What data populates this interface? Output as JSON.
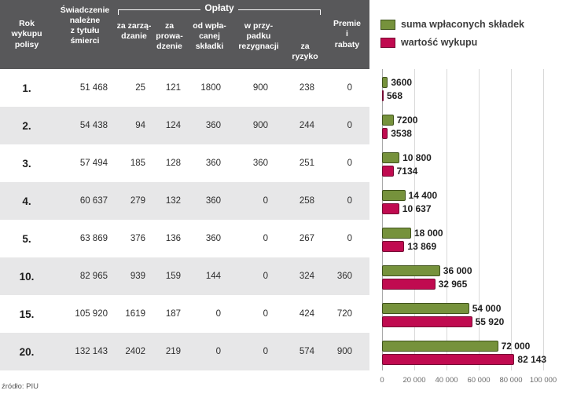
{
  "colors": {
    "header_bg": "#58585a",
    "row_alt_bg": "#e7e7e8"
  },
  "source_note": "źródło: PIU",
  "table": {
    "header": {
      "year": "Rok\nwykupu\npolisy",
      "benefit": "Świadczenie\nnależne\nz tytułu\nśmierci",
      "fees_group": "Opłaty",
      "fee_management": "za zarzą-\ndzanie",
      "fee_administration": "za prowa-\ndzenie",
      "fee_premium": "od wpła-\ncanej\nskładki",
      "fee_surrender": "w przy-\npadku\nrezygnacji",
      "fee_risk": "za\nryzyko",
      "bonuses": "Premie\ni\nrabaty"
    },
    "rows": [
      {
        "year": "1.",
        "benefit": "51 468",
        "management": "25",
        "administration": "121",
        "premium": "1800",
        "surrender": "900",
        "risk": "238",
        "bonuses": "0"
      },
      {
        "year": "2.",
        "benefit": "54 438",
        "management": "94",
        "administration": "124",
        "premium": "360",
        "surrender": "900",
        "risk": "244",
        "bonuses": "0"
      },
      {
        "year": "3.",
        "benefit": "57 494",
        "management": "185",
        "administration": "128",
        "premium": "360",
        "surrender": "360",
        "risk": "251",
        "bonuses": "0"
      },
      {
        "year": "4.",
        "benefit": "60 637",
        "management": "279",
        "administration": "132",
        "premium": "360",
        "surrender": "0",
        "risk": "258",
        "bonuses": "0"
      },
      {
        "year": "5.",
        "benefit": "63 869",
        "management": "376",
        "administration": "136",
        "premium": "360",
        "surrender": "0",
        "risk": "267",
        "bonuses": "0"
      },
      {
        "year": "10.",
        "benefit": "82 965",
        "management": "939",
        "administration": "159",
        "premium": "144",
        "surrender": "0",
        "risk": "324",
        "bonuses": "360"
      },
      {
        "year": "15.",
        "benefit": "105 920",
        "management": "1619",
        "administration": "187",
        "premium": "0",
        "surrender": "0",
        "risk": "424",
        "bonuses": "720"
      },
      {
        "year": "20.",
        "benefit": "132 143",
        "management": "2402",
        "administration": "219",
        "premium": "0",
        "surrender": "0",
        "risk": "574",
        "bonuses": "900"
      }
    ]
  },
  "chart_data": {
    "type": "bar",
    "orientation": "horizontal",
    "categories": [
      "1.",
      "2.",
      "3.",
      "4.",
      "5.",
      "10.",
      "15.",
      "20."
    ],
    "series": [
      {
        "name": "suma wpłaconych składek",
        "color": "#76923c",
        "border": "#3f521c",
        "values": [
          3600,
          7200,
          10800,
          14400,
          18000,
          36000,
          54000,
          72000
        ],
        "labels": [
          "3600",
          "7200",
          "10 800",
          "14 400",
          "18 000",
          "36 000",
          "54 000",
          "72 000"
        ]
      },
      {
        "name": "wartość wykupu",
        "color": "#c00b50",
        "border": "#750a33",
        "values": [
          568,
          3538,
          7134,
          10637,
          13869,
          32965,
          55920,
          82143
        ],
        "labels": [
          "568",
          "3538",
          "7134",
          "10 637",
          "13 869",
          "32 965",
          "55 920",
          "82 143"
        ]
      }
    ],
    "xlim": [
      0,
      100000
    ],
    "x_ticks": [
      "0",
      "20 000",
      "40 000",
      "60 000",
      "80 000",
      "100 000"
    ],
    "x_tick_values": [
      0,
      20000,
      40000,
      60000,
      80000,
      100000
    ],
    "legend_position": "top",
    "grid": true
  }
}
